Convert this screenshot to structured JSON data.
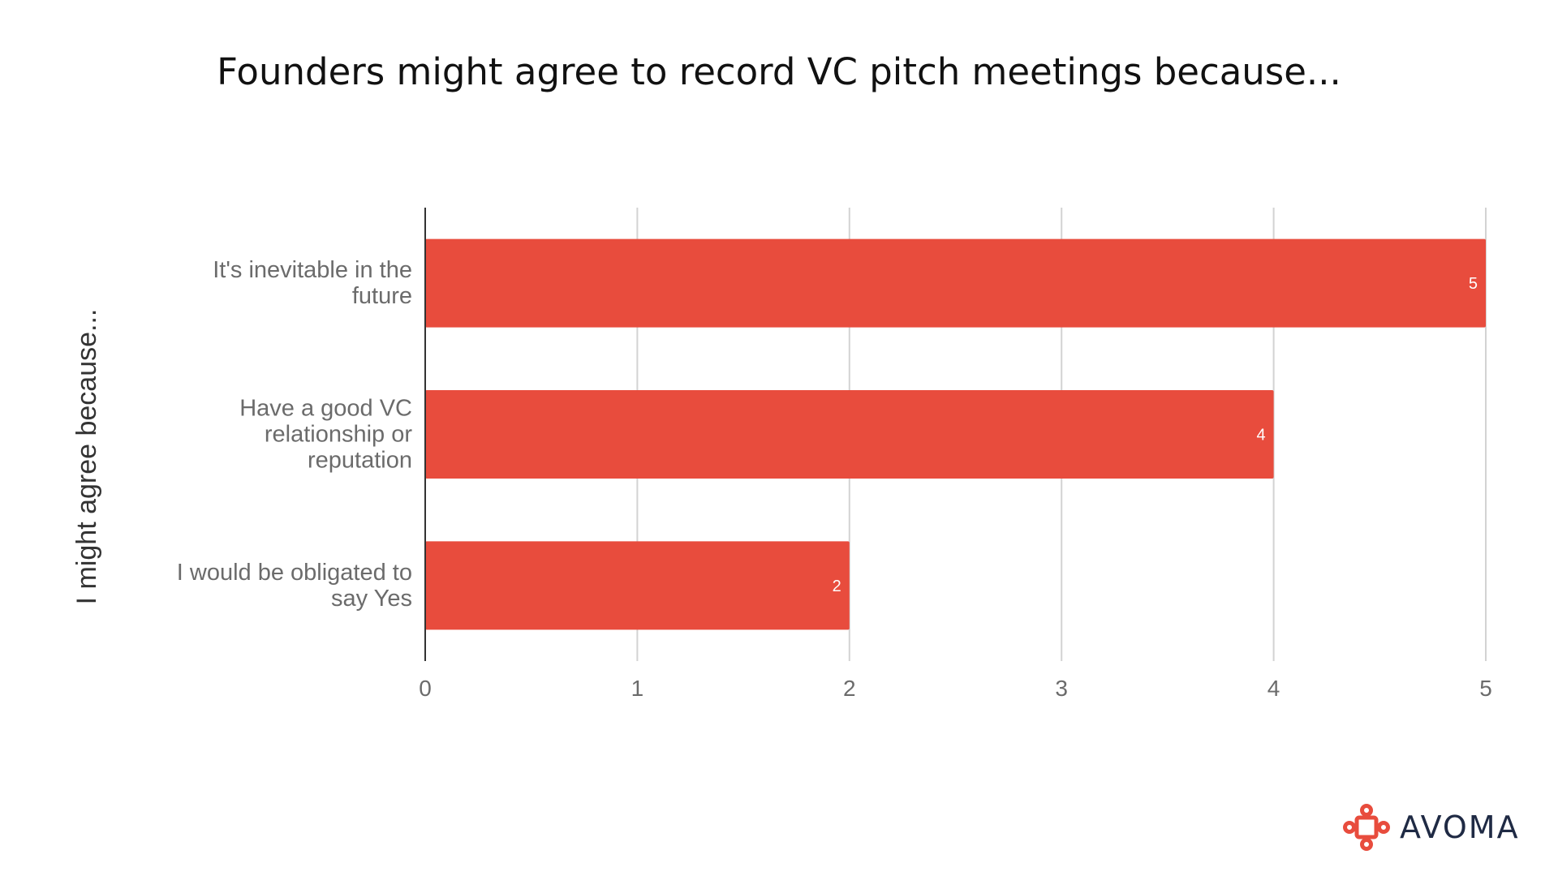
{
  "chart_data": {
    "type": "bar",
    "orientation": "horizontal",
    "title": "Founders might agree to record VC pitch meetings because...",
    "ylabel": "I might agree because...",
    "xlabel": "",
    "categories": [
      [
        "It's inevitable in the",
        "future"
      ],
      [
        "Have a good VC",
        "relationship or",
        "reputation"
      ],
      [
        "I would be obligated to",
        "say Yes"
      ]
    ],
    "values": [
      5,
      4,
      2
    ],
    "data_labels": [
      "5",
      "4",
      "2"
    ],
    "xlim": [
      0,
      5
    ],
    "x_ticks": [
      "0",
      "1",
      "2",
      "3",
      "4",
      "5"
    ],
    "grid": true,
    "bar_color": "#e84c3d",
    "grid_color": "#d3d3d3"
  },
  "brand": {
    "name": "Avoma",
    "name_display": "AVOMA",
    "logo_icon": "avoma-logo-icon",
    "logo_color": "#e84c3d"
  }
}
